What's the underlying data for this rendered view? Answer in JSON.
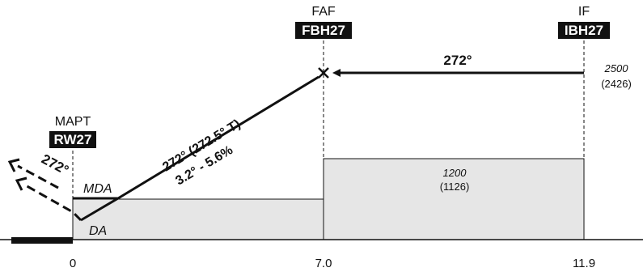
{
  "fixes": {
    "faf": {
      "role": "FAF",
      "id": "FBH27"
    },
    "if": {
      "role": "IF",
      "id": "IBH27"
    },
    "mapt": {
      "role": "MAPT",
      "id": "RW27"
    }
  },
  "segments": {
    "intermediate": {
      "course": "272°",
      "altitude": "2500",
      "altitude_msl": "(2426)"
    },
    "final": {
      "course": "272° (272.5° T)",
      "gradient": "3.2° - 5.6%",
      "altitude": "1200",
      "altitude_msl": "(1126)"
    },
    "missed": {
      "course": "272°"
    }
  },
  "minima": {
    "mda": "MDA",
    "da": "DA"
  },
  "distances": {
    "threshold": "0",
    "faf": "7.0",
    "if": "11.9"
  },
  "colors": {
    "ink": "#111111",
    "area_fill": "#e6e6e6",
    "label_bg": "#111111",
    "label_text": "#ffffff"
  }
}
